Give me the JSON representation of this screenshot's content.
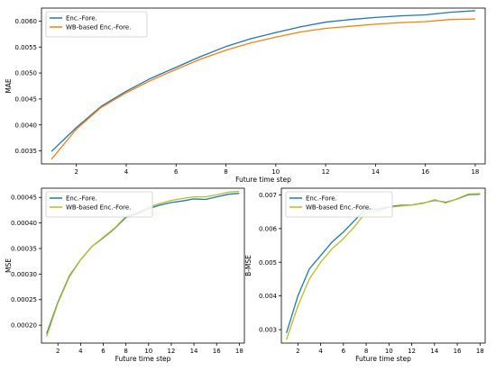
{
  "chart_data": [
    {
      "type": "line",
      "xlabel": "Future time step",
      "ylabel": "MAE",
      "xlim": [
        0.6,
        18.4
      ],
      "ylim": [
        0.00325,
        0.00625
      ],
      "xticks": [
        2,
        4,
        6,
        8,
        10,
        12,
        14,
        16,
        18
      ],
      "yticks": [
        0.0035,
        0.004,
        0.0045,
        0.005,
        0.0055,
        0.006
      ],
      "ytick_labels": [
        "0.0035",
        "0.0040",
        "0.0045",
        "0.0050",
        "0.0055",
        "0.0060"
      ],
      "legend_position": "top-left",
      "grid": false,
      "x": [
        1,
        2,
        3,
        4,
        5,
        6,
        7,
        8,
        9,
        10,
        11,
        12,
        13,
        14,
        15,
        16,
        17,
        18
      ],
      "series": [
        {
          "name": "Enc.-Fore.",
          "color": "#1f77b4",
          "values": [
            0.00349,
            0.00395,
            0.00436,
            0.00465,
            0.0049,
            0.00511,
            0.00532,
            0.00551,
            0.00566,
            0.00578,
            0.00589,
            0.00598,
            0.00603,
            0.00607,
            0.0061,
            0.00612,
            0.00617,
            0.0062
          ]
        },
        {
          "name": "WB-based Enc.-Fore.",
          "color": "#ff7f0e",
          "values": [
            0.00334,
            0.00392,
            0.00434,
            0.00462,
            0.00486,
            0.00507,
            0.00527,
            0.00544,
            0.00558,
            0.00569,
            0.00579,
            0.00586,
            0.0059,
            0.00594,
            0.00597,
            0.00599,
            0.00603,
            0.00604
          ]
        }
      ]
    },
    {
      "type": "line",
      "xlabel": "Future time step",
      "ylabel": "MSE",
      "xlim": [
        0.55,
        18.45
      ],
      "ylim": [
        0.000165,
        0.000468
      ],
      "xticks": [
        2,
        4,
        6,
        8,
        10,
        12,
        14,
        16,
        18
      ],
      "yticks": [
        0.0002,
        0.00025,
        0.0003,
        0.00035,
        0.0004,
        0.00045
      ],
      "ytick_labels": [
        "0.00020",
        "0.00025",
        "0.00030",
        "0.00035",
        "0.00040",
        "0.00045"
      ],
      "legend_position": "top-left",
      "grid": false,
      "x": [
        1,
        2,
        3,
        4,
        5,
        6,
        7,
        8,
        9,
        10,
        11,
        12,
        13,
        14,
        15,
        16,
        17,
        18
      ],
      "series": [
        {
          "name": "Enc.-Fore.",
          "color": "#1f77b4",
          "values": [
            0.000183,
            0.000245,
            0.000296,
            0.000328,
            0.000354,
            0.000371,
            0.000389,
            0.000411,
            0.000418,
            0.000428,
            0.000435,
            0.00044,
            0.000443,
            0.000447,
            0.000446,
            0.000451,
            0.000456,
            0.000458
          ]
        },
        {
          "name": "WB-based Enc.-Fore.",
          "color": "#bcbd22",
          "values": [
            0.000178,
            0.000243,
            0.000294,
            0.000328,
            0.000354,
            0.000372,
            0.00039,
            0.000413,
            0.000421,
            0.000431,
            0.000438,
            0.000444,
            0.000448,
            0.000451,
            0.000451,
            0.000455,
            0.00046,
            0.000462
          ]
        }
      ]
    },
    {
      "type": "line",
      "xlabel": "Future time step",
      "ylabel": "B-MSE",
      "xlim": [
        0.55,
        18.45
      ],
      "ylim": [
        0.0026,
        0.0072
      ],
      "xticks": [
        2,
        4,
        6,
        8,
        10,
        12,
        14,
        16,
        18
      ],
      "yticks": [
        0.003,
        0.004,
        0.005,
        0.006,
        0.007
      ],
      "ytick_labels": [
        "0.003",
        "0.004",
        "0.005",
        "0.006",
        "0.007"
      ],
      "legend_position": "top-left",
      "grid": false,
      "x": [
        1,
        2,
        3,
        4,
        5,
        6,
        7,
        8,
        9,
        10,
        11,
        12,
        13,
        14,
        15,
        16,
        17,
        18
      ],
      "series": [
        {
          "name": "Enc.-Fore.",
          "color": "#1f77b4",
          "values": [
            0.0029,
            0.004,
            0.0048,
            0.0052,
            0.0056,
            0.0059,
            0.00625,
            0.0066,
            0.00657,
            0.00665,
            0.00669,
            0.0067,
            0.00676,
            0.00684,
            0.00678,
            0.00688,
            0.00701,
            0.00702
          ]
        },
        {
          "name": "WB-based Enc.-Fore.",
          "color": "#bcbd22",
          "values": [
            0.0027,
            0.0037,
            0.0045,
            0.005,
            0.0054,
            0.0057,
            0.00607,
            0.0065,
            0.00651,
            0.00663,
            0.00667,
            0.0067,
            0.00675,
            0.00686,
            0.00676,
            0.00689,
            0.00703,
            0.00704
          ]
        }
      ]
    }
  ]
}
